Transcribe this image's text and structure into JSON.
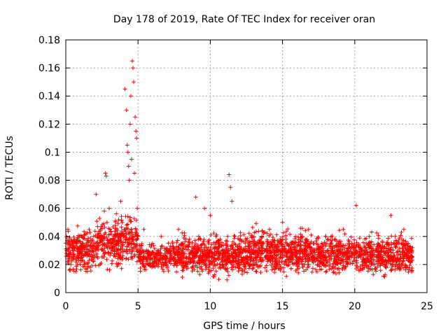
{
  "chart_data": {
    "type": "scatter",
    "title": "Day 178 of 2019, Rate Of TEC Index for receiver oran",
    "xlabel": "GPS time / hours",
    "ylabel": "ROTI / TECUs",
    "xlim": [
      0,
      25
    ],
    "ylim": [
      0,
      0.18
    ],
    "x_ticks": [
      0,
      5,
      10,
      15,
      20,
      25
    ],
    "x_tick_labels": [
      "0",
      "5",
      "10",
      "15",
      "20",
      "25"
    ],
    "y_ticks": [
      0,
      0.02,
      0.04,
      0.06,
      0.08,
      0.1,
      0.12,
      0.14,
      0.16,
      0.18
    ],
    "y_tick_labels": [
      "0",
      "0.02",
      "0.04",
      "0.06",
      "0.08",
      "0.1",
      "0.12",
      "0.14",
      "0.16",
      "0.18"
    ],
    "grid": true,
    "marker": "+",
    "marker_color": "#ff0000",
    "series": [
      {
        "name": "ROTI",
        "x": [
          0.05,
          0.15,
          0.25,
          0.35,
          0.5,
          0.7,
          0.9,
          1.1,
          1.3,
          1.5,
          1.7,
          1.9,
          2.1,
          2.2,
          2.4,
          2.6,
          2.75,
          2.8,
          2.85,
          3.0,
          3.2,
          3.4,
          3.6,
          3.8,
          4.0,
          4.1,
          4.2,
          4.25,
          4.3,
          4.35,
          4.4,
          4.45,
          4.5,
          4.55,
          4.6,
          4.65,
          4.7,
          4.75,
          4.8,
          4.85,
          4.9,
          4.95,
          5.0,
          5.2,
          5.4,
          5.6,
          5.8,
          6.0,
          6.3,
          6.6,
          6.9,
          7.2,
          7.5,
          7.8,
          8.1,
          8.4,
          8.7,
          9.0,
          9.2,
          9.4,
          9.6,
          9.8,
          10.0,
          10.3,
          10.6,
          10.9,
          11.2,
          11.3,
          11.4,
          11.5,
          11.7,
          12.0,
          12.3,
          12.6,
          12.9,
          13.2,
          13.5,
          13.8,
          14.1,
          14.4,
          14.7,
          15.0,
          15.3,
          15.6,
          15.9,
          16.2,
          16.5,
          16.8,
          17.1,
          17.4,
          17.7,
          18.0,
          18.3,
          18.6,
          18.9,
          19.2,
          19.5,
          19.8,
          20.1,
          20.4,
          20.7,
          21.0,
          21.3,
          21.6,
          21.9,
          22.2,
          22.5,
          22.8,
          23.1,
          23.4,
          23.7,
          23.9
        ],
        "y": [
          0.03,
          0.045,
          0.025,
          0.02,
          0.035,
          0.015,
          0.025,
          0.04,
          0.02,
          0.015,
          0.018,
          0.025,
          0.07,
          0.035,
          0.045,
          0.03,
          0.085,
          0.083,
          0.05,
          0.06,
          0.03,
          0.04,
          0.02,
          0.065,
          0.04,
          0.145,
          0.13,
          0.105,
          0.1,
          0.09,
          0.08,
          0.12,
          0.14,
          0.095,
          0.165,
          0.16,
          0.15,
          0.085,
          0.125,
          0.115,
          0.11,
          0.06,
          0.04,
          0.025,
          0.045,
          0.03,
          0.02,
          0.035,
          0.025,
          0.04,
          0.02,
          0.03,
          0.025,
          0.045,
          0.035,
          0.02,
          0.03,
          0.068,
          0.04,
          0.025,
          0.06,
          0.03,
          0.055,
          0.02,
          0.035,
          0.03,
          0.04,
          0.084,
          0.075,
          0.065,
          0.04,
          0.02,
          0.03,
          0.025,
          0.04,
          0.015,
          0.035,
          0.025,
          0.045,
          0.03,
          0.02,
          0.05,
          0.035,
          0.025,
          0.04,
          0.03,
          0.02,
          0.045,
          0.03,
          0.025,
          0.035,
          0.04,
          0.02,
          0.03,
          0.025,
          0.045,
          0.03,
          0.035,
          0.062,
          0.025,
          0.03,
          0.04,
          0.02,
          0.035,
          0.025,
          0.03,
          0.055,
          0.04,
          0.02,
          0.045,
          0.035,
          0.03
        ]
      }
    ],
    "dense_bands": [
      {
        "x0": 0.0,
        "x1": 2.0,
        "ymin": 0.01,
        "ymax": 0.05,
        "n": 220
      },
      {
        "x0": 2.0,
        "x1": 4.2,
        "ymin": 0.012,
        "ymax": 0.06,
        "n": 240
      },
      {
        "x0": 4.2,
        "x1": 5.0,
        "ymin": 0.015,
        "ymax": 0.06,
        "n": 80
      },
      {
        "x0": 5.0,
        "x1": 8.0,
        "ymin": 0.012,
        "ymax": 0.04,
        "n": 300
      },
      {
        "x0": 8.0,
        "x1": 12.5,
        "ymin": 0.008,
        "ymax": 0.045,
        "n": 520
      },
      {
        "x0": 12.5,
        "x1": 17.0,
        "ymin": 0.008,
        "ymax": 0.05,
        "n": 560
      },
      {
        "x0": 17.0,
        "x1": 21.0,
        "ymin": 0.01,
        "ymax": 0.045,
        "n": 420
      },
      {
        "x0": 21.0,
        "x1": 24.0,
        "ymin": 0.008,
        "ymax": 0.045,
        "n": 360
      }
    ]
  }
}
